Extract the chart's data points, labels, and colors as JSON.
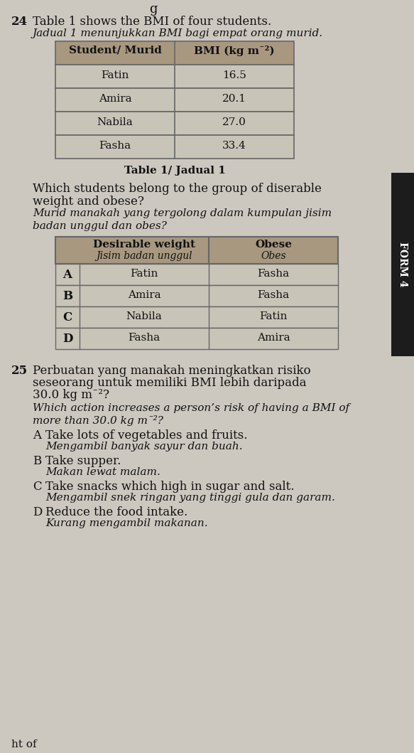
{
  "bg_color": "#ccc8c0",
  "q24_num": "24",
  "q24_title_en": "Table 1 shows the BMI of four students.",
  "q24_title_ms": "Jadual 1 menunjukkan BMI bagi empat orang murid.",
  "table1_header": [
    "Student/ Murid",
    "BMI (kg m¯²)"
  ],
  "table1_rows": [
    [
      "Fatin",
      "16.5"
    ],
    [
      "Amira",
      "20.1"
    ],
    [
      "Nabila",
      "27.0"
    ],
    [
      "Fasha",
      "33.4"
    ]
  ],
  "table1_caption": "Table 1/ Jadual 1",
  "q24_question_en": "Which students belong to the group of diserable\nweight and obese?",
  "q24_question_ms": "Murid manakah yang tergolong dalam kumpulan jisim\nbadan unggul dan obes?",
  "table2_header_col1_en": "Desirable weight",
  "table2_header_col1_ms": "Jisim badan unggul",
  "table2_header_col2_en": "Obese",
  "table2_header_col2_ms": "Obes",
  "table2_rows": [
    [
      "A",
      "Fatin",
      "Fasha"
    ],
    [
      "B",
      "Amira",
      "Fasha"
    ],
    [
      "C",
      "Nabila",
      "Fatin"
    ],
    [
      "D",
      "Fasha",
      "Amira"
    ]
  ],
  "q25_num": "25",
  "q25_ms_line1": "Perbuatan yang manakah meningkatkan risiko",
  "q25_ms_line2": "seseorang untuk memiliki BMI lebih daripada",
  "q25_ms_line3": "30.0 kg m¯²?",
  "q25_en_line1": "Which action increases a person’s risk of having a BMI of",
  "q25_en_line2": "more than 30.0 kg m¯²?",
  "q25_options_en": [
    "Take lots of vegetables and fruits.",
    "Take supper.",
    "Take snacks which high in sugar and salt.",
    "Reduce the food intake."
  ],
  "q25_options_ms": [
    "Mengambil banyak sayur dan buah.",
    "Makan lewat malam.",
    "Mengambil snek ringan yang tinggi gula dan garam.",
    "Kurang mengambil makanan."
  ],
  "q25_labels": [
    "A",
    "B",
    "C",
    "D"
  ],
  "form_label": "FORM 4",
  "footer_text": "ht of",
  "header_partial": "g",
  "table1_header_color": "#a89880",
  "table1_row_color": "#c8c4b8",
  "table2_header_color": "#a89880",
  "table2_row_color": "#c8c4b8",
  "table_border_color": "#666666"
}
